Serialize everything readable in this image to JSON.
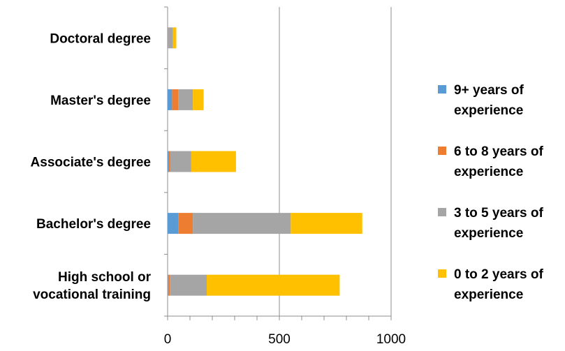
{
  "chart_data": {
    "type": "bar",
    "orientation": "horizontal",
    "stacked": true,
    "categories": [
      [
        "Doctoral degree"
      ],
      [
        "Master's degree"
      ],
      [
        "Associate's degree"
      ],
      [
        "Bachelor's degree"
      ],
      [
        "High school or",
        "vocational training"
      ]
    ],
    "series": [
      {
        "name": [
          "9+ years of",
          "experience"
        ],
        "color": "#5B9BD5",
        "values": [
          2,
          20,
          6,
          48,
          2
        ]
      },
      {
        "name": [
          "6 to 8 years of",
          "experience"
        ],
        "color": "#ED7D31",
        "values": [
          2,
          28,
          5,
          65,
          8
        ]
      },
      {
        "name": [
          "3 to 5 years of",
          "experience"
        ],
        "color": "#A5A5A5",
        "values": [
          20,
          65,
          95,
          438,
          165
        ]
      },
      {
        "name": [
          "0 to 2 years of",
          "experience"
        ],
        "color": "#FFC000",
        "values": [
          15,
          48,
          200,
          320,
          595
        ]
      }
    ],
    "x_ticks": [
      0,
      500,
      1000
    ],
    "xlim": [
      0,
      1000
    ],
    "minor_step": 100,
    "grid": "vertical major gridlines",
    "legend_position": "right"
  }
}
